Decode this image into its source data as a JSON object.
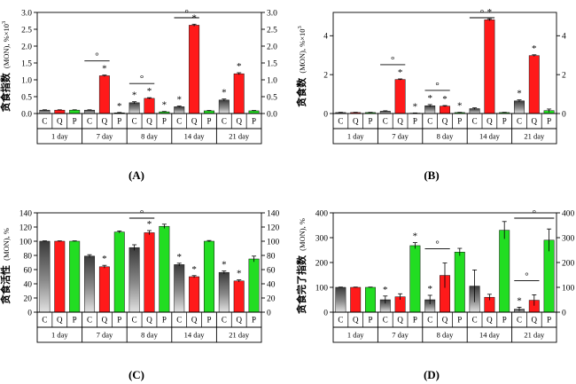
{
  "figure": {
    "days": [
      "1 day",
      "7 day",
      "8 day",
      "14 day",
      "21 day"
    ],
    "groups": [
      "C",
      "Q",
      "P"
    ],
    "colors": {
      "C": "#6e6e6e",
      "Q": "#ff1a1a",
      "P": "#22dd22"
    }
  },
  "chart_data": [
    {
      "type": "bar",
      "panel_label": "(A)",
      "ylabel_cn": "贪食指数",
      "ylabel_unit": "(MON), %×10",
      "ylabel_sup": "3",
      "ylim": [
        0,
        3.0
      ],
      "yticks": [
        "0.0",
        "0.5",
        "1.0",
        "1.5",
        "2.0",
        "2.5",
        "3.0"
      ],
      "ytick_values": [
        0,
        0.5,
        1.0,
        1.5,
        2.0,
        2.5,
        3.0
      ],
      "series": [
        {
          "name": "C",
          "values": [
            0.1,
            0.1,
            0.32,
            0.2,
            0.4
          ],
          "errors": [
            0.01,
            0.01,
            0.03,
            0.02,
            0.03
          ]
        },
        {
          "name": "Q",
          "values": [
            0.1,
            1.12,
            0.45,
            2.62,
            1.18
          ],
          "errors": [
            0.01,
            0.02,
            0.02,
            0.03,
            0.03
          ]
        },
        {
          "name": "P",
          "values": [
            0.1,
            0.02,
            0.05,
            0.08,
            0.08
          ],
          "errors": [
            0.01,
            0.01,
            0.01,
            0.01,
            0.01
          ]
        }
      ],
      "stars": [
        [
          false,
          false,
          false
        ],
        [
          false,
          true,
          true
        ],
        [
          true,
          true,
          true
        ],
        [
          true,
          true,
          false
        ],
        [
          true,
          true,
          false
        ]
      ],
      "brackets": [
        {
          "day": 1,
          "from": 0,
          "to": 1,
          "symbol": "°"
        },
        {
          "day": 2,
          "from": 0,
          "to": 1,
          "symbol": "°"
        },
        {
          "day": 3,
          "from": 0,
          "to": 1,
          "symbol": "°"
        }
      ]
    },
    {
      "type": "bar",
      "panel_label": "(B)",
      "ylabel_cn": "贪食数",
      "ylabel_unit": "(MON), %×10",
      "ylabel_sup": "3",
      "ylim": [
        0,
        5.2
      ],
      "yticks": [
        "0",
        "2",
        "4"
      ],
      "ytick_values": [
        0,
        2,
        4
      ],
      "series": [
        {
          "name": "C",
          "values": [
            0.05,
            0.12,
            0.4,
            0.25,
            0.65
          ],
          "errors": [
            0.01,
            0.02,
            0.06,
            0.04,
            0.05
          ]
        },
        {
          "name": "Q",
          "values": [
            0.05,
            1.75,
            0.38,
            4.82,
            2.98
          ],
          "errors": [
            0.01,
            0.03,
            0.03,
            0.05,
            0.04
          ]
        },
        {
          "name": "P",
          "values": [
            0.05,
            0.02,
            0.05,
            0.05,
            0.15
          ],
          "errors": [
            0.01,
            0.01,
            0.01,
            0.01,
            0.08
          ]
        }
      ],
      "stars": [
        [
          false,
          false,
          false
        ],
        [
          false,
          true,
          true
        ],
        [
          true,
          true,
          true
        ],
        [
          false,
          true,
          false
        ],
        [
          true,
          true,
          false
        ]
      ],
      "brackets": [
        {
          "day": 1,
          "from": 0,
          "to": 1,
          "symbol": "°"
        },
        {
          "day": 2,
          "from": 0,
          "to": 1,
          "symbol": "°"
        },
        {
          "day": 3,
          "from": 0,
          "to": 1,
          "symbol": "°"
        }
      ]
    },
    {
      "type": "bar",
      "panel_label": "(C)",
      "ylabel_cn": "贪食活性",
      "ylabel_unit": "(MON), %",
      "ylabel_sup": "",
      "ylim": [
        0,
        140
      ],
      "yticks": [
        "0",
        "20",
        "40",
        "60",
        "80",
        "100",
        "120",
        "140"
      ],
      "ytick_values": [
        0,
        20,
        40,
        60,
        80,
        100,
        120,
        140
      ],
      "series": [
        {
          "name": "C",
          "values": [
            100,
            79,
            91,
            67,
            56
          ],
          "errors": [
            0.5,
            2,
            4,
            2,
            2
          ]
        },
        {
          "name": "Q",
          "values": [
            100,
            64,
            112,
            50,
            44
          ],
          "errors": [
            0.5,
            2,
            3,
            1.5,
            1.5
          ]
        },
        {
          "name": "P",
          "values": [
            100,
            113,
            121,
            100,
            75
          ],
          "errors": [
            0.5,
            1.5,
            3,
            1,
            4
          ]
        }
      ],
      "stars": [
        [
          false,
          false,
          false
        ],
        [
          false,
          true,
          false
        ],
        [
          false,
          true,
          false
        ],
        [
          true,
          true,
          false
        ],
        [
          true,
          true,
          false
        ]
      ],
      "brackets": [
        {
          "day": 2,
          "from": 0,
          "to": 1,
          "symbol": "°"
        }
      ]
    },
    {
      "type": "bar",
      "panel_label": "(D)",
      "ylabel_cn": "贪食完了指数",
      "ylabel_unit": "(MON), %",
      "ylabel_sup": "",
      "ylim": [
        0,
        400
      ],
      "yticks": [
        "0",
        "100",
        "200",
        "300",
        "400"
      ],
      "ytick_values": [
        0,
        100,
        200,
        300,
        400
      ],
      "series": [
        {
          "name": "C",
          "values": [
            100,
            50,
            50,
            105,
            12
          ],
          "errors": [
            1,
            15,
            18,
            65,
            8
          ]
        },
        {
          "name": "Q",
          "values": [
            100,
            62,
            148,
            60,
            48
          ],
          "errors": [
            1,
            12,
            50,
            12,
            22
          ]
        },
        {
          "name": "P",
          "values": [
            100,
            268,
            242,
            330,
            290
          ],
          "errors": [
            1,
            12,
            15,
            35,
            45
          ]
        }
      ],
      "stars": [
        [
          false,
          false,
          false
        ],
        [
          true,
          false,
          true
        ],
        [
          true,
          false,
          false
        ],
        [
          false,
          false,
          false
        ],
        [
          true,
          false,
          false
        ]
      ],
      "brackets": [
        {
          "day": 2,
          "from": 0,
          "to": 1,
          "symbol": "°"
        },
        {
          "day": 4,
          "from": 0,
          "to": 1,
          "symbol": "°"
        },
        {
          "day": 4,
          "from": 0,
          "to": 2,
          "symbol": "°"
        }
      ]
    }
  ]
}
